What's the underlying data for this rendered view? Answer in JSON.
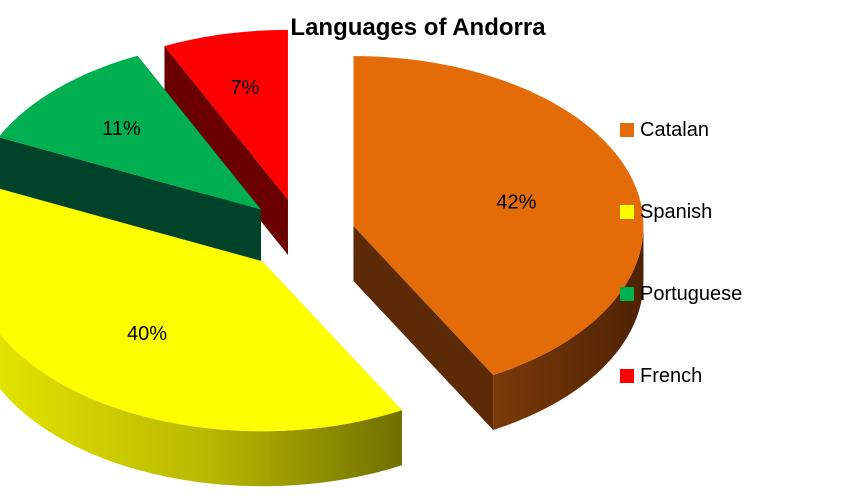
{
  "chart_data": {
    "type": "pie",
    "title": "Languages of Andorra",
    "slices": [
      {
        "label": "Catalan",
        "value": 42,
        "display": "42%",
        "color": "#E36C09",
        "side": "#5C2A06"
      },
      {
        "label": "Spanish",
        "value": 40,
        "display": "40%",
        "color": "#FFFF00",
        "side": "#8A8A00"
      },
      {
        "label": "Portuguese",
        "value": 11,
        "display": "11%",
        "color": "#00B050",
        "side": "#00432A"
      },
      {
        "label": "French",
        "value": 7,
        "display": "7%",
        "color": "#FF0000",
        "side": "#6A0000"
      }
    ],
    "legend_position": "right",
    "exploded": true,
    "three_d": true
  }
}
